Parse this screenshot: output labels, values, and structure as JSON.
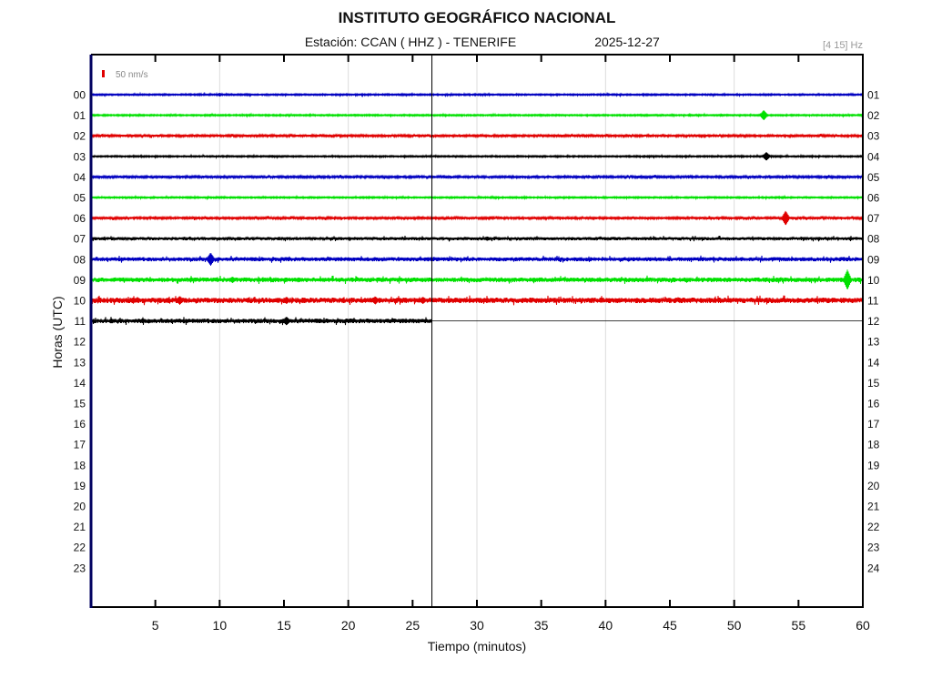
{
  "chart_data": {
    "type": "line",
    "title": "INSTITUTO GEOGRÁFICO NACIONAL",
    "station": "Estación:  CCAN ( HHZ ) - TENERIFE",
    "date": "2025-12-27",
    "filter": "[4 15] Hz",
    "scale_label": "50 nm/s",
    "scale_value_nm_s": 50,
    "xlabel": "Tiempo (minutos)",
    "ylabel": "Horas (UTC)",
    "xlim": [
      0,
      60
    ],
    "x_ticks": [
      5,
      10,
      15,
      20,
      25,
      30,
      35,
      40,
      45,
      50,
      55,
      60
    ],
    "x_grid": [
      10,
      20,
      30,
      40,
      50
    ],
    "y_labels_left": [
      "00",
      "01",
      "02",
      "03",
      "04",
      "05",
      "06",
      "07",
      "08",
      "09",
      "10",
      "11",
      "12",
      "13",
      "14",
      "15",
      "16",
      "17",
      "18",
      "19",
      "20",
      "21",
      "22",
      "23"
    ],
    "y_labels_right": [
      "01",
      "02",
      "03",
      "04",
      "05",
      "06",
      "07",
      "08",
      "09",
      "10",
      "11",
      "12",
      "13",
      "14",
      "15",
      "16",
      "17",
      "18",
      "19",
      "20",
      "21",
      "22",
      "23",
      "24"
    ],
    "current_time_minute": 26.5,
    "colors": [
      "#0000c0",
      "#00e000",
      "#e00000",
      "#000000"
    ],
    "traces": [
      {
        "hour": 0,
        "noise_nm_s": 5,
        "events": [
          {
            "minute": 10.0,
            "amp_nm_s": 12
          }
        ]
      },
      {
        "hour": 1,
        "noise_nm_s": 5,
        "events": [
          {
            "minute": 52.3,
            "amp_nm_s": 35
          }
        ]
      },
      {
        "hour": 2,
        "noise_nm_s": 8,
        "events": []
      },
      {
        "hour": 3,
        "noise_nm_s": 5,
        "events": [
          {
            "minute": 14.1,
            "amp_nm_s": 10
          },
          {
            "minute": 52.5,
            "amp_nm_s": 30
          }
        ]
      },
      {
        "hour": 4,
        "noise_nm_s": 8,
        "events": []
      },
      {
        "hour": 5,
        "noise_nm_s": 5,
        "events": []
      },
      {
        "hour": 6,
        "noise_nm_s": 8,
        "events": [
          {
            "minute": 54.0,
            "amp_nm_s": 50
          }
        ]
      },
      {
        "hour": 7,
        "noise_nm_s": 11,
        "events": [
          {
            "minute": 30.8,
            "amp_nm_s": 15
          }
        ]
      },
      {
        "hour": 8,
        "noise_nm_s": 14,
        "events": [
          {
            "minute": 9.3,
            "amp_nm_s": 45
          }
        ]
      },
      {
        "hour": 9,
        "noise_nm_s": 16,
        "events": [
          {
            "minute": 11.0,
            "amp_nm_s": 22
          },
          {
            "minute": 58.8,
            "amp_nm_s": 70
          }
        ]
      },
      {
        "hour": 10,
        "noise_nm_s": 19,
        "events": [
          {
            "minute": 6.9,
            "amp_nm_s": 30
          },
          {
            "minute": 15.2,
            "amp_nm_s": 25
          },
          {
            "minute": 22.1,
            "amp_nm_s": 28
          },
          {
            "minute": 25.8,
            "amp_nm_s": 25
          }
        ]
      },
      {
        "hour": 11,
        "noise_nm_s": 16,
        "events": [
          {
            "minute": 15.2,
            "amp_nm_s": 30
          }
        ],
        "end_minute": 26.5
      }
    ]
  }
}
